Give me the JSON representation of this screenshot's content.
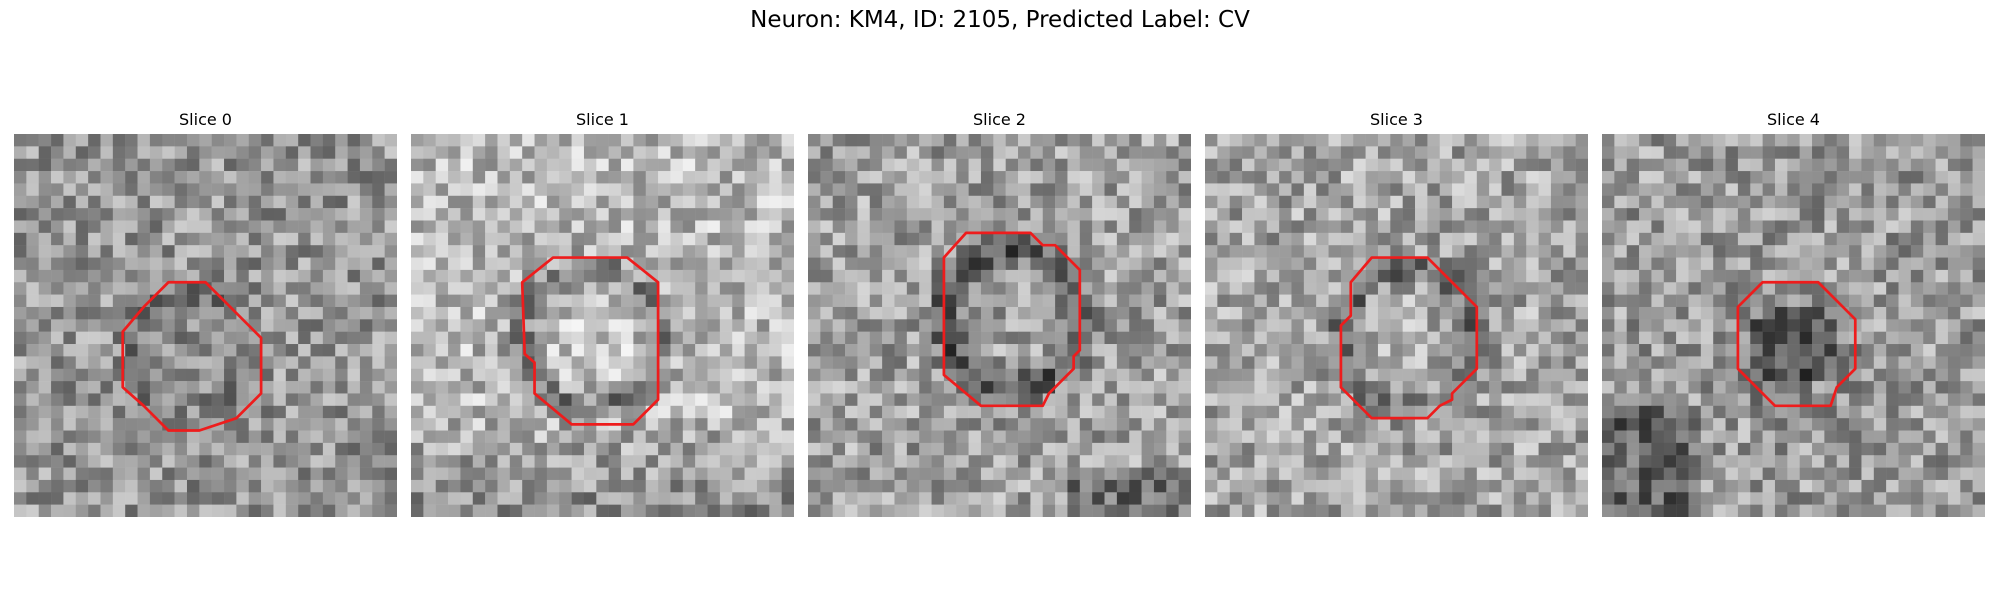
{
  "figure": {
    "title": "Neuron: KM4, ID: 2105, Predicted Label: CV"
  },
  "colors": {
    "contour": "#ee1c1c",
    "image_colormap": "gray"
  },
  "panels": [
    {
      "title": "Slice 0",
      "icon": "grayscale-slice-image"
    },
    {
      "title": "Slice 1",
      "icon": "grayscale-slice-image"
    },
    {
      "title": "Slice 2",
      "icon": "grayscale-slice-image"
    },
    {
      "title": "Slice 3",
      "icon": "grayscale-slice-image"
    },
    {
      "title": "Slice 4",
      "icon": "grayscale-slice-image"
    }
  ]
}
